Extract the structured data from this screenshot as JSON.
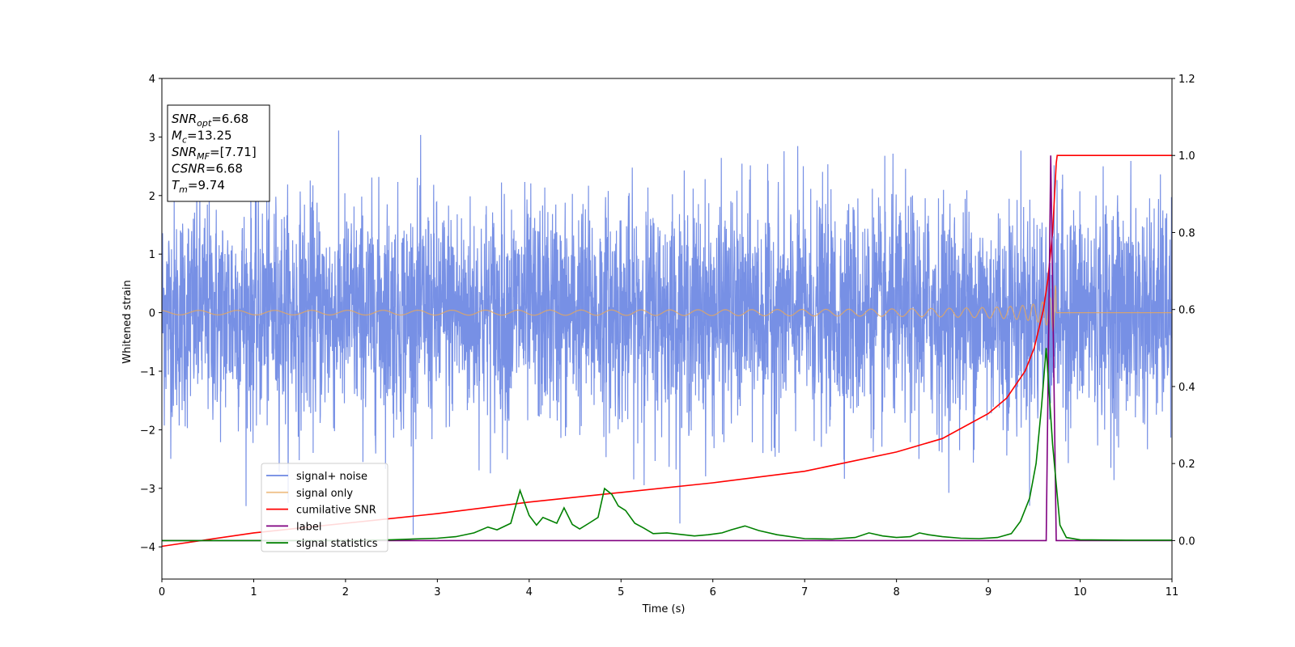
{
  "chart_data": {
    "type": "line",
    "xlabel": "Time (s)",
    "ylabel": "Whitened strain",
    "xlim": [
      0,
      11
    ],
    "ylim": [
      -4.55,
      4.0
    ],
    "y2lim": [
      -0.1,
      1.2
    ],
    "grid": false,
    "legend_position": "lower-left",
    "x_ticks": [
      "0",
      "1",
      "2",
      "3",
      "4",
      "5",
      "6",
      "7",
      "8",
      "9",
      "10",
      "11"
    ],
    "y_ticks": [
      "−4",
      "−3",
      "−2",
      "−1",
      "0",
      "1",
      "2",
      "3",
      "4"
    ],
    "y2_ticks": [
      "0.0",
      "0.2",
      "0.4",
      "0.6",
      "0.8",
      "1.0",
      "1.2"
    ],
    "annotation": [
      {
        "base": "SNR",
        "sub": "opt",
        "value": "=6.68"
      },
      {
        "base": "M",
        "sub": "c",
        "value": "=13.25"
      },
      {
        "base": "SNR",
        "sub": "MF",
        "value": "=[7.71]"
      },
      {
        "base": "CSNR",
        "sub": "",
        "value": "=6.68"
      },
      {
        "base": "T",
        "sub": "m",
        "value": "=9.74"
      }
    ],
    "series": [
      {
        "name": "signal+ noise",
        "axis": "left",
        "color": "#6b87e3",
        "noise_sigma": 0.95,
        "signal_amplitude_end": 0.55,
        "merger_time": 9.74
      },
      {
        "name": "signal only",
        "axis": "left",
        "color": "#e8a85a",
        "amplitude_start": 0.02,
        "amplitude_end": 0.55,
        "merger_time": 9.74
      },
      {
        "name": "cumilative SNR",
        "axis": "right",
        "x": [
          0,
          1,
          2,
          3,
          4,
          5,
          6,
          7,
          8,
          8.5,
          9,
          9.2,
          9.4,
          9.5,
          9.6,
          9.65,
          9.7,
          9.74,
          9.75,
          11
        ],
        "values": [
          -0.015,
          0.02,
          0.045,
          0.07,
          0.1,
          0.125,
          0.15,
          0.18,
          0.23,
          0.265,
          0.33,
          0.37,
          0.44,
          0.5,
          0.6,
          0.68,
          0.8,
          0.98,
          1.0,
          1.0
        ],
        "color": "#ff0000"
      },
      {
        "name": "label",
        "axis": "right",
        "x": [
          0,
          9.63,
          9.68,
          9.74,
          11
        ],
        "values": [
          0,
          0,
          1.0,
          0,
          0
        ],
        "color": "#800080"
      },
      {
        "name": "signal statistics",
        "axis": "right",
        "x": [
          0,
          0.5,
          1,
          1.5,
          2,
          2.5,
          3,
          3.2,
          3.4,
          3.55,
          3.65,
          3.8,
          3.9,
          4.0,
          4.08,
          4.15,
          4.22,
          4.3,
          4.38,
          4.47,
          4.55,
          4.65,
          4.75,
          4.82,
          4.9,
          4.97,
          5.05,
          5.15,
          5.25,
          5.35,
          5.5,
          5.65,
          5.8,
          5.95,
          6.1,
          6.2,
          6.35,
          6.5,
          6.7,
          7.0,
          7.3,
          7.55,
          7.7,
          7.85,
          8.0,
          8.15,
          8.25,
          8.35,
          8.5,
          8.7,
          8.9,
          9.1,
          9.25,
          9.35,
          9.45,
          9.52,
          9.58,
          9.63,
          9.7,
          9.78,
          9.85,
          10,
          10.5,
          11
        ],
        "values": [
          0,
          0,
          0,
          0,
          0,
          0.002,
          0.006,
          0.01,
          0.02,
          0.035,
          0.028,
          0.045,
          0.13,
          0.065,
          0.04,
          0.06,
          0.053,
          0.045,
          0.085,
          0.042,
          0.03,
          0.045,
          0.06,
          0.135,
          0.12,
          0.09,
          0.078,
          0.045,
          0.032,
          0.018,
          0.02,
          0.016,
          0.012,
          0.015,
          0.02,
          0.028,
          0.038,
          0.026,
          0.015,
          0.005,
          0.004,
          0.008,
          0.02,
          0.012,
          0.008,
          0.01,
          0.02,
          0.015,
          0.01,
          0.006,
          0.005,
          0.008,
          0.018,
          0.05,
          0.11,
          0.2,
          0.35,
          0.5,
          0.25,
          0.04,
          0.008,
          0.002,
          0.001,
          0.001
        ],
        "color": "#008000"
      }
    ]
  }
}
